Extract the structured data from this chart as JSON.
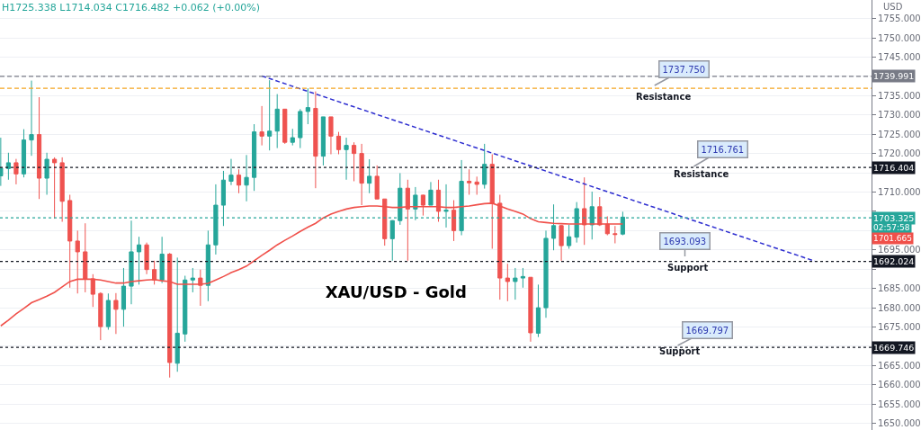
{
  "chart_data": {
    "type": "candlestick",
    "title": "XAU/USD - Gold",
    "categories": [
      null,
      null,
      null,
      null,
      null,
      null,
      null,
      null,
      null,
      null,
      null,
      null,
      null,
      null,
      null,
      null,
      null,
      null,
      null,
      null,
      null,
      null,
      null,
      null,
      null,
      null,
      null,
      null,
      null,
      null,
      null,
      null,
      null,
      null,
      null,
      null,
      null,
      null,
      null,
      null,
      null,
      null,
      null,
      null,
      null,
      null,
      null,
      null,
      null,
      null,
      null,
      null,
      null,
      null,
      null,
      null,
      null,
      null,
      null,
      null,
      null,
      null,
      null,
      null,
      null,
      null,
      null,
      null,
      null,
      null,
      null,
      null,
      null,
      null,
      null,
      null,
      null,
      null,
      null,
      null,
      null,
      null,
      null,
      null,
      null,
      null,
      null,
      null,
      null,
      null,
      null,
      null,
      null,
      null,
      null,
      null,
      null,
      null,
      null,
      null,
      null,
      null,
      null,
      null,
      null,
      null,
      null,
      null,
      null,
      null,
      null,
      null,
      null,
      null
    ],
    "ohlc": [
      [
        1714.2,
        1724.1,
        1711.6,
        1716.2
      ],
      [
        1716.1,
        1720.2,
        1713.2,
        1717.6
      ],
      [
        1717.6,
        1718.6,
        1712.0,
        1714.7
      ],
      [
        1714.7,
        1726.3,
        1713.8,
        1723.5
      ],
      [
        1723.5,
        1738.9,
        1719.4,
        1724.9
      ],
      [
        1724.9,
        1734.6,
        1708.2,
        1713.6
      ],
      [
        1713.6,
        1720.2,
        1709.3,
        1718.5
      ],
      [
        1718.5,
        1719.0,
        1703.1,
        1717.6
      ],
      [
        1717.6,
        1719.0,
        1702.3,
        1707.6
      ],
      [
        1707.8,
        1709.3,
        1685.2,
        1697.3
      ],
      [
        1697.3,
        1700.0,
        1683.7,
        1694.5
      ],
      [
        1694.5,
        1701.9,
        1684.0,
        1687.5
      ],
      [
        1687.5,
        1688.7,
        1680.2,
        1683.5
      ],
      [
        1683.7,
        1684.0,
        1671.6,
        1675.1
      ],
      [
        1675.1,
        1683.7,
        1674.3,
        1681.9
      ],
      [
        1681.9,
        1683.8,
        1673.2,
        1679.6
      ],
      [
        1679.6,
        1690.3,
        1675.1,
        1685.6
      ],
      [
        1685.6,
        1702.6,
        1680.9,
        1694.5
      ],
      [
        1694.5,
        1698.4,
        1686.0,
        1696.3
      ],
      [
        1696.3,
        1696.9,
        1688.7,
        1689.9
      ],
      [
        1689.9,
        1692.2,
        1686.0,
        1687.2
      ],
      [
        1687.2,
        1698.4,
        1686.4,
        1693.9
      ],
      [
        1693.9,
        1694.2,
        1661.9,
        1665.8
      ],
      [
        1665.6,
        1693.0,
        1663.4,
        1673.4
      ],
      [
        1673.2,
        1688.3,
        1671.2,
        1687.2
      ],
      [
        1687.2,
        1690.3,
        1684.0,
        1687.7
      ],
      [
        1687.7,
        1689.9,
        1680.5,
        1685.8
      ],
      [
        1685.8,
        1700.0,
        1681.7,
        1696.3
      ],
      [
        1696.3,
        1712.0,
        1693.8,
        1706.6
      ],
      [
        1706.6,
        1715.5,
        1701.2,
        1713.1
      ],
      [
        1712.8,
        1718.6,
        1711.8,
        1714.4
      ],
      [
        1714.4,
        1715.9,
        1709.7,
        1711.8
      ],
      [
        1711.8,
        1719.6,
        1707.6,
        1713.8
      ],
      [
        1713.8,
        1727.6,
        1710.3,
        1725.6
      ],
      [
        1725.6,
        1732.3,
        1722.1,
        1724.5
      ],
      [
        1724.5,
        1739.0,
        1720.8,
        1725.8
      ],
      [
        1725.8,
        1735.4,
        1721.4,
        1731.5
      ],
      [
        1731.5,
        1731.5,
        1722.5,
        1722.9
      ],
      [
        1722.9,
        1726.4,
        1722.1,
        1724.1
      ],
      [
        1724.1,
        1731.5,
        1721.4,
        1730.9
      ],
      [
        1730.9,
        1736.9,
        1727.6,
        1731.9
      ],
      [
        1731.7,
        1736.1,
        1711.0,
        1719.3
      ],
      [
        1719.3,
        1729.5,
        1716.9,
        1729.5
      ],
      [
        1729.5,
        1729.5,
        1719.8,
        1724.5
      ],
      [
        1724.5,
        1725.6,
        1719.8,
        1721.0
      ],
      [
        1721.0,
        1724.1,
        1713.2,
        1722.1
      ],
      [
        1722.1,
        1722.9,
        1712.8,
        1720.0
      ],
      [
        1720.0,
        1722.5,
        1706.6,
        1712.3
      ],
      [
        1712.3,
        1718.5,
        1709.7,
        1714.1
      ],
      [
        1714.1,
        1716.9,
        1708.2,
        1708.2
      ],
      [
        1708.2,
        1708.2,
        1696.1,
        1697.9
      ],
      [
        1697.9,
        1702.7,
        1692.2,
        1702.6
      ],
      [
        1702.6,
        1714.9,
        1701.5,
        1711.0
      ],
      [
        1711.0,
        1713.2,
        1692.2,
        1705.6
      ],
      [
        1705.6,
        1711.3,
        1702.7,
        1709.2
      ],
      [
        1709.2,
        1709.3,
        1703.9,
        1706.6
      ],
      [
        1706.6,
        1712.6,
        1706.6,
        1710.5
      ],
      [
        1710.5,
        1713.2,
        1702.3,
        1705.0
      ],
      [
        1705.0,
        1712.0,
        1700.8,
        1705.3
      ],
      [
        1705.3,
        1707.9,
        1697.3,
        1700.0
      ],
      [
        1700.0,
        1718.3,
        1698.8,
        1712.8
      ],
      [
        1712.8,
        1715.9,
        1709.3,
        1712.4
      ],
      [
        1712.6,
        1714.0,
        1709.3,
        1712.0
      ],
      [
        1712.0,
        1722.5,
        1710.9,
        1717.2
      ],
      [
        1717.2,
        1719.8,
        1695.3,
        1707.0
      ],
      [
        1707.1,
        1709.3,
        1682.1,
        1687.7
      ],
      [
        1687.7,
        1691.4,
        1681.7,
        1686.8
      ],
      [
        1686.8,
        1690.3,
        1682.1,
        1687.7
      ],
      [
        1687.7,
        1690.3,
        1685.2,
        1688.1
      ],
      [
        1687.9,
        1687.9,
        1671.2,
        1673.5
      ],
      [
        1673.4,
        1686.0,
        1672.4,
        1680.0
      ],
      [
        1680.0,
        1700.0,
        1677.4,
        1698.0
      ],
      [
        1698.0,
        1706.8,
        1694.9,
        1701.3
      ],
      [
        1701.3,
        1701.5,
        1692.2,
        1696.1
      ],
      [
        1696.1,
        1701.5,
        1695.3,
        1698.4
      ],
      [
        1698.3,
        1707.4,
        1696.9,
        1705.7
      ],
      [
        1705.7,
        1713.8,
        1696.3,
        1701.5
      ],
      [
        1701.5,
        1710.1,
        1697.7,
        1706.2
      ],
      [
        1706.2,
        1708.7,
        1701.2,
        1701.5
      ],
      [
        1701.7,
        1703.7,
        1698.8,
        1699.2
      ],
      [
        1699.2,
        1701.2,
        1696.7,
        1699.0
      ],
      [
        1699.1,
        1704.9,
        1698.8,
        1703.5
      ],
      null,
      null,
      null,
      null,
      null,
      null,
      null,
      null,
      null,
      null,
      null,
      null,
      null,
      null,
      null,
      null,
      null,
      null,
      null,
      null,
      null,
      null,
      null,
      null,
      null,
      null,
      null,
      null,
      null,
      null,
      null,
      null
    ],
    "colors": [
      "#26a69a",
      "#26a69a",
      "#ef5350",
      "#26a69a",
      "#26a69a",
      "#ef5350",
      "#26a69a",
      "#ef5350",
      "#ef5350",
      "#ef5350",
      "#ef5350",
      "#ef5350",
      "#ef5350",
      "#ef5350",
      "#26a69a",
      "#ef5350",
      "#26a69a",
      "#26a69a",
      "#26a69a",
      "#ef5350",
      "#ef5350",
      "#26a69a",
      "#ef5350",
      "#26a69a",
      "#26a69a",
      "#26a69a",
      "#ef5350",
      "#26a69a",
      "#26a69a",
      "#26a69a",
      "#26a69a",
      "#ef5350",
      "#26a69a",
      "#26a69a",
      "#ef5350",
      "#26a69a",
      "#26a69a",
      "#ef5350",
      "#26a69a",
      "#26a69a",
      "#26a69a",
      "#ef5350",
      "#26a69a",
      "#ef5350",
      "#ef5350",
      "#26a69a",
      "#ef5350",
      "#ef5350",
      "#26a69a",
      "#ef5350",
      "#ef5350",
      "#26a69a",
      "#26a69a",
      "#ef5350",
      "#26a69a",
      "#ef5350",
      "#26a69a",
      "#ef5350",
      "#26a69a",
      "#ef5350",
      "#26a69a",
      "#ef5350",
      "#ef5350",
      "#26a69a",
      "#ef5350",
      "#ef5350",
      "#ef5350",
      "#26a69a",
      "#26a69a",
      "#ef5350",
      "#26a69a",
      "#26a69a",
      "#26a69a",
      "#ef5350",
      "#26a69a",
      "#26a69a",
      "#ef5350",
      "#26a69a",
      "#ef5350",
      "#ef5350",
      "#ef5350",
      "#26a69a",
      null,
      null,
      null,
      null,
      null,
      null,
      null,
      null,
      null,
      null,
      null,
      null,
      null,
      null,
      null,
      null,
      null,
      null,
      null,
      null,
      null,
      null,
      null,
      null,
      null,
      null,
      null,
      null,
      null,
      null,
      null,
      null
    ],
    "series": [
      {
        "type": "line",
        "color": "#f0504a",
        "values": [
          1675.3,
          1676.8,
          1678.4,
          1679.8,
          1681.3,
          1682.1,
          1683.0,
          1684.0,
          1685.4,
          1686.8,
          1687.4,
          1687.4,
          1687.4,
          1687.2,
          1686.8,
          1686.4,
          1686.4,
          1686.8,
          1687.0,
          1687.2,
          1687.3,
          1687.0,
          1686.8,
          1686.1,
          1686.1,
          1686.1,
          1686.1,
          1686.3,
          1687.2,
          1688.1,
          1689.1,
          1689.9,
          1690.8,
          1692.2,
          1693.6,
          1694.9,
          1696.3,
          1697.5,
          1698.6,
          1699.8,
          1700.9,
          1701.9,
          1703.3,
          1704.3,
          1705.0,
          1705.6,
          1706.0,
          1706.2,
          1706.4,
          1706.4,
          1706.2,
          1706.0,
          1706.0,
          1706.2,
          1706.2,
          1706.2,
          1706.2,
          1706.2,
          1706.0,
          1706.0,
          1706.2,
          1706.4,
          1706.7,
          1707.0,
          1707.1,
          1706.4,
          1705.6,
          1705.0,
          1704.3,
          1703.1,
          1702.3,
          1702.1,
          1701.9,
          1701.8,
          1701.7,
          1701.7,
          1701.7,
          1701.7,
          1701.7,
          1701.7,
          1701.7,
          1701.7,
          null,
          null,
          null,
          null,
          null,
          null,
          null,
          null,
          null,
          null,
          null,
          null,
          null,
          null,
          null,
          null,
          null,
          null,
          null,
          null,
          null,
          null,
          null,
          null,
          null,
          null,
          null,
          null,
          null,
          null,
          null,
          null
        ]
      },
      {
        "type": "line",
        "color": "#2e2ed0",
        "line_style": "dashed",
        "values": [
          null,
          null,
          null,
          null,
          null,
          null,
          null,
          null,
          null,
          null,
          null,
          null,
          null,
          null,
          null,
          null,
          null,
          null,
          null,
          null,
          null,
          null,
          null,
          null,
          null,
          null,
          null,
          null,
          null,
          null,
          null,
          null,
          null,
          null,
          1740.1,
          null,
          null,
          null,
          null,
          null,
          null,
          null,
          null,
          null,
          null,
          null,
          null,
          null,
          null,
          null,
          null,
          null,
          null,
          null,
          null,
          null,
          null,
          null,
          null,
          null,
          null,
          null,
          null,
          null,
          null,
          null,
          null,
          null,
          null,
          null,
          null,
          null,
          null,
          null,
          null,
          null,
          null,
          null,
          null,
          null,
          null,
          null,
          null,
          null,
          null,
          null,
          null,
          null,
          null,
          null,
          null,
          null,
          null,
          null,
          null,
          null,
          null,
          null,
          null,
          null,
          null,
          null,
          null,
          null,
          null,
          null,
          1692.1,
          null,
          null,
          null,
          null,
          null,
          null,
          null
        ]
      }
    ],
    "ref_lines": [
      {
        "axis": "y",
        "value": 1739.991,
        "label": "1739.991",
        "color": "#787b86",
        "line_style": "dashed"
      },
      {
        "axis": "y",
        "value": 1736.9,
        "color": "#f5a623",
        "line_style": "dashed"
      },
      {
        "axis": "y",
        "value": 1716.404,
        "label": "1716.404",
        "color": "#131722",
        "line_style": "dotted"
      },
      {
        "axis": "y",
        "value": 1703.325,
        "label": "1703.325",
        "color": "#26a69a",
        "line_style": "dotted"
      },
      {
        "axis": "y",
        "value": 1692.024,
        "label": "1692.024",
        "color": "#131722",
        "line_style": "dotted"
      },
      {
        "axis": "y",
        "value": 1669.746,
        "label": "1669.746",
        "color": "#131722",
        "line_style": "dotted"
      }
    ],
    "annotations": [
      "H1725.338 L1714.034 C1716.482 +0.062 (+0.00%)",
      "USD",
      "02:57:58",
      "1701.665",
      "1737.750",
      "Resistance",
      "1716.761",
      "Resistance",
      "1693.093",
      "Support",
      "1669.797",
      "Support"
    ],
    "ylim": [
      1648.3,
      1759.8
    ],
    "yticks": [
      {
        "value": 1650,
        "label": "1650.000"
      },
      {
        "value": 1655,
        "label": "1655.000"
      },
      {
        "value": 1660,
        "label": "1660.000"
      },
      {
        "value": 1665,
        "label": "1665.000"
      },
      {
        "value": 1670,
        "label": null
      },
      {
        "value": 1675,
        "label": "1675.000"
      },
      {
        "value": 1680,
        "label": "1680.000"
      },
      {
        "value": 1685,
        "label": "1685.000"
      },
      {
        "value": 1690,
        "label": null
      },
      {
        "value": 1695,
        "label": "1695.000"
      },
      {
        "value": 1700,
        "label": null
      },
      {
        "value": 1705,
        "label": null
      },
      {
        "value": 1710,
        "label": "1710.000"
      },
      {
        "value": 1715,
        "label": null
      },
      {
        "value": 1720,
        "label": "1720.000"
      },
      {
        "value": 1725,
        "label": "1725.000"
      },
      {
        "value": 1730,
        "label": "1730.000"
      },
      {
        "value": 1735,
        "label": "1735.000"
      },
      {
        "value": 1740,
        "label": null
      },
      {
        "value": 1745,
        "label": "1745.000"
      },
      {
        "value": 1750,
        "label": "1750.000"
      },
      {
        "value": 1755,
        "label": "1755.000"
      }
    ],
    "tick_labels": "y",
    "grid": "y",
    "marker": "none"
  }
}
